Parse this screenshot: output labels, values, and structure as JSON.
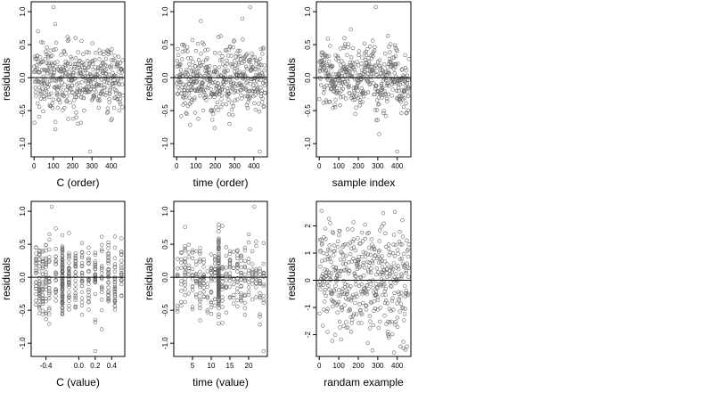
{
  "figure": {
    "layout": "2x3 grid of scatter panels"
  },
  "chart_data": [
    {
      "id": "c-order",
      "type": "scatter",
      "xlabel": "C (order)",
      "ylabel": "residuals",
      "xlim": [
        -15,
        470
      ],
      "ylim": [
        -1.2,
        1.15
      ],
      "xticks": [
        0,
        100,
        200,
        300,
        400
      ],
      "xtick_labels": [
        "0",
        "100",
        "200",
        "300",
        "400"
      ],
      "yticks": [
        -1.0,
        -0.5,
        0.0,
        0.5,
        1.0
      ],
      "ytick_labels": [
        "-1.0",
        "-0.5",
        "0.0",
        "0.5",
        "1.0"
      ],
      "hline": 0,
      "n_points": 450,
      "notable_points": [
        [
          100,
          1.07
        ],
        [
          290,
          -1.12
        ],
        [
          110,
          -0.78
        ]
      ],
      "marker": "open circle",
      "color": "#666666"
    },
    {
      "id": "time-order",
      "type": "scatter",
      "xlabel": "time (order)",
      "ylabel": "residuals",
      "xlim": [
        -15,
        470
      ],
      "ylim": [
        -1.2,
        1.15
      ],
      "xticks": [
        0,
        100,
        200,
        300,
        400
      ],
      "xtick_labels": [
        "0",
        "100",
        "200",
        "300",
        "400"
      ],
      "yticks": [
        -1.0,
        -0.5,
        0.0,
        0.5,
        1.0
      ],
      "ytick_labels": [
        "-1.0",
        "-0.5",
        "0.0",
        "0.5",
        "1.0"
      ],
      "hline": 0,
      "n_points": 450,
      "notable_points": [
        [
          380,
          1.07
        ],
        [
          430,
          -1.12
        ],
        [
          380,
          -0.78
        ]
      ],
      "marker": "open circle",
      "color": "#666666"
    },
    {
      "id": "sample-index",
      "type": "scatter",
      "xlabel": "sample index",
      "ylabel": "residuals",
      "xlim": [
        -15,
        470
      ],
      "ylim": [
        -1.2,
        1.15
      ],
      "xticks": [
        0,
        100,
        200,
        300,
        400
      ],
      "xtick_labels": [
        "0",
        "100",
        "200",
        "300",
        "400"
      ],
      "yticks": [
        -1.0,
        -0.5,
        0.0,
        0.5,
        1.0
      ],
      "ytick_labels": [
        "-1.0",
        "-0.5",
        "0.0",
        "0.5",
        "1.0"
      ],
      "hline": 0,
      "n_points": 450,
      "notable_points": [
        [
          290,
          1.07
        ],
        [
          400,
          -1.12
        ]
      ],
      "marker": "open circle",
      "color": "#666666"
    },
    {
      "id": "c-value",
      "type": "scatter",
      "xlabel": "C (value)",
      "ylabel": "residuals",
      "xlim": [
        -0.58,
        0.56
      ],
      "ylim": [
        -1.2,
        1.15
      ],
      "xticks": [
        -0.4,
        0.0,
        0.2,
        0.4
      ],
      "xtick_labels": [
        "-0.4",
        "0.0",
        "0.2",
        "0.4"
      ],
      "yticks": [
        -1.0,
        -0.5,
        0.0,
        0.5,
        1.0
      ],
      "ytick_labels": [
        "-1.0",
        "-0.5",
        "0.0",
        "0.5",
        "1.0"
      ],
      "hline": 0,
      "n_points": 450,
      "x_levels": [
        -0.52,
        -0.48,
        -0.44,
        -0.4,
        -0.36,
        -0.28,
        -0.2,
        -0.12,
        -0.04,
        0.04,
        0.12,
        0.2,
        0.28,
        0.36,
        0.44,
        0.52
      ],
      "notable_points": [
        [
          -0.33,
          1.07
        ],
        [
          0.2,
          -1.12
        ]
      ],
      "marker": "open circle",
      "color": "#666666"
    },
    {
      "id": "time-value",
      "type": "scatter",
      "xlabel": "time (value)",
      "ylabel": "residuals",
      "xlim": [
        0,
        25
      ],
      "ylim": [
        -1.2,
        1.15
      ],
      "xticks": [
        5,
        10,
        15,
        20
      ],
      "xtick_labels": [
        "5",
        "10",
        "15",
        "20"
      ],
      "yticks": [
        -1.0,
        -0.5,
        0.0,
        0.5,
        1.0
      ],
      "ytick_labels": [
        "-1.0",
        "-0.5",
        "0.0",
        "0.5",
        "1.0"
      ],
      "hline": 0,
      "n_points": 450,
      "x_levels": [
        1,
        2,
        3,
        4,
        5,
        6,
        7,
        8,
        9,
        10,
        11,
        12,
        13,
        14,
        15,
        16,
        17,
        18,
        19,
        20,
        21,
        22,
        23,
        24
      ],
      "notable_points": [
        [
          21.5,
          1.07
        ],
        [
          24,
          -1.12
        ]
      ],
      "marker": "open circle",
      "color": "#666666"
    },
    {
      "id": "random-example",
      "type": "scatter",
      "xlabel": "randam example",
      "ylabel": "residuals",
      "xlim": [
        -15,
        470
      ],
      "ylim": [
        -2.8,
        2.9
      ],
      "xticks": [
        0,
        100,
        200,
        300,
        400
      ],
      "xtick_labels": [
        "0",
        "100",
        "200",
        "300",
        "400"
      ],
      "yticks": [
        -2,
        -1,
        0,
        1,
        2
      ],
      "ytick_labels": [
        "-2",
        "-1",
        "0",
        "1",
        "2"
      ],
      "hline": 0,
      "n_points": 450,
      "marker": "open circle",
      "color": "#666666"
    }
  ]
}
